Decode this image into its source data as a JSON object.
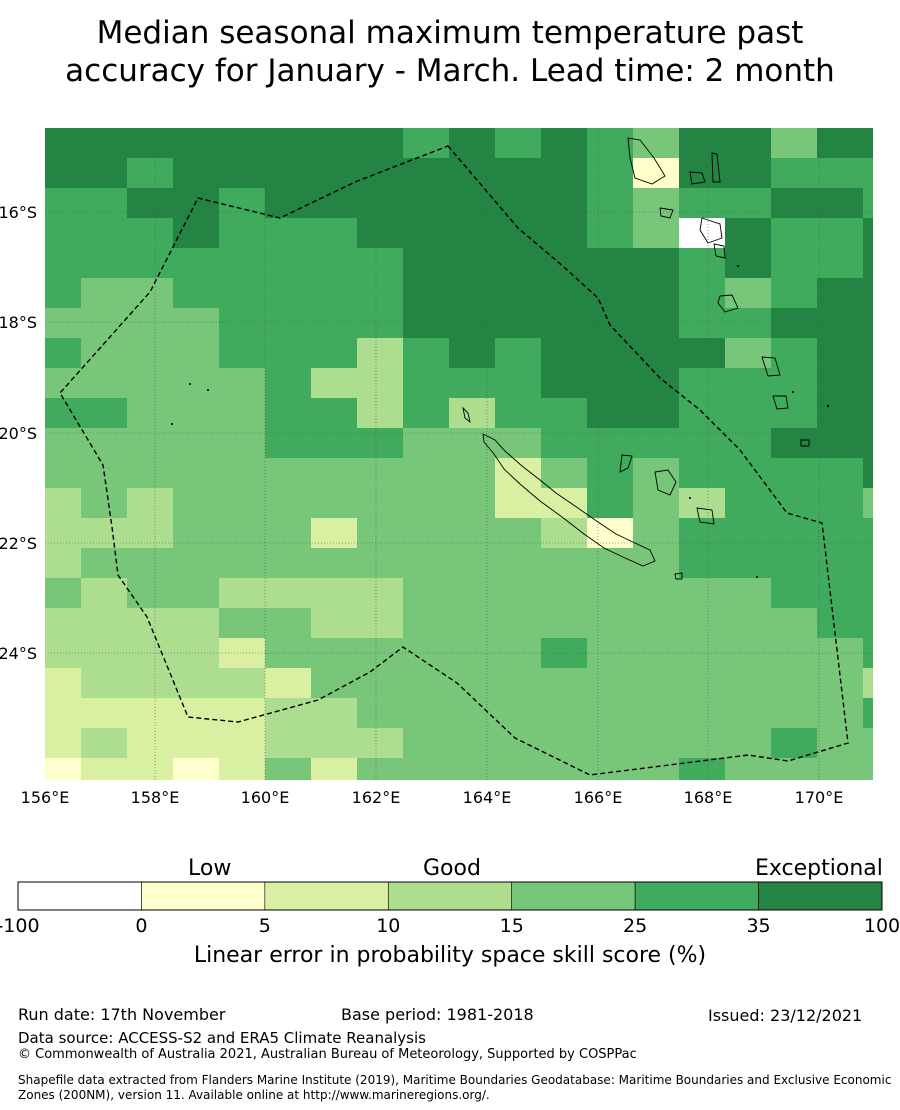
{
  "title_lines": [
    "Median seasonal maximum temperature past",
    "accuracy for January - March. Lead time: 2 month"
  ],
  "map": {
    "lon_labels": [
      "156°E",
      "158°E",
      "160°E",
      "162°E",
      "164°E",
      "166°E",
      "168°E",
      "170°E"
    ],
    "lat_labels": [
      "16°S",
      "18°S",
      "20°S",
      "22°S",
      "24°S"
    ],
    "lon_range": [
      156,
      171
    ],
    "lat_range": [
      -14.6,
      -26.4
    ]
  },
  "colorbar": {
    "category_labels": {
      "low": "Low",
      "good": "Good",
      "exceptional": "Exceptional"
    },
    "ticks": [
      "-100",
      "0",
      "5",
      "10",
      "15",
      "25",
      "35",
      "100"
    ],
    "colors": [
      "#ffffff",
      "#ffffcc",
      "#d9f0a3",
      "#addd8e",
      "#78c679",
      "#41ab5d",
      "#238443"
    ],
    "label": "Linear error in probability space skill score (%)"
  },
  "footer": {
    "run_date": "Run date: 17th November",
    "base_period": "Base period: 1981-2018",
    "issued": "Issued: 23/12/2021",
    "data_source": "Data source: ACCESS-S2 and ERA5 Climate Reanalysis",
    "copyright": "© Commonwealth of Australia 2021, Australian Bureau of Meteorology, Supported by COSPPac",
    "shapefile": "Shapefile data extracted from Flanders Marine Institute (2019), Maritime Boundaries Geodatabase: Maritime Boundaries and Exclusive Economic Zones (200NM), version 11. Available online at http://www.marineregions.org/."
  }
}
